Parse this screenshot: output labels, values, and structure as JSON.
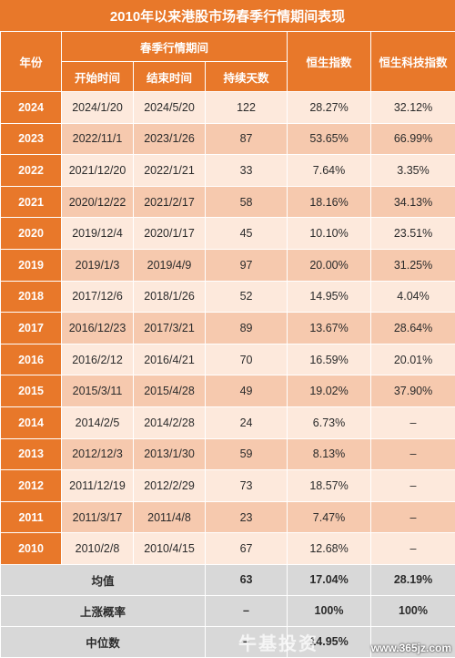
{
  "title": "2010年以来港股市场春季行情期间表现",
  "headers": {
    "year": "年份",
    "period_group": "春季行情期间",
    "start": "开始时间",
    "end": "结束时间",
    "days": "持续天数",
    "hsi": "恒生指数",
    "hstech": "恒生科技指数"
  },
  "rows": [
    {
      "year": "2024",
      "start": "2024/1/20",
      "end": "2024/5/20",
      "days": "122",
      "hsi": "28.27%",
      "hstech": "32.12%"
    },
    {
      "year": "2023",
      "start": "2022/11/1",
      "end": "2023/1/26",
      "days": "87",
      "hsi": "53.65%",
      "hstech": "66.99%"
    },
    {
      "year": "2022",
      "start": "2021/12/20",
      "end": "2022/1/21",
      "days": "33",
      "hsi": "7.64%",
      "hstech": "3.35%"
    },
    {
      "year": "2021",
      "start": "2020/12/22",
      "end": "2021/2/17",
      "days": "58",
      "hsi": "18.16%",
      "hstech": "34.13%"
    },
    {
      "year": "2020",
      "start": "2019/12/4",
      "end": "2020/1/17",
      "days": "45",
      "hsi": "10.10%",
      "hstech": "23.51%"
    },
    {
      "year": "2019",
      "start": "2019/1/3",
      "end": "2019/4/9",
      "days": "97",
      "hsi": "20.00%",
      "hstech": "31.25%"
    },
    {
      "year": "2018",
      "start": "2017/12/6",
      "end": "2018/1/26",
      "days": "52",
      "hsi": "14.95%",
      "hstech": "4.04%"
    },
    {
      "year": "2017",
      "start": "2016/12/23",
      "end": "2017/3/21",
      "days": "89",
      "hsi": "13.67%",
      "hstech": "28.64%"
    },
    {
      "year": "2016",
      "start": "2016/2/12",
      "end": "2016/4/21",
      "days": "70",
      "hsi": "16.59%",
      "hstech": "20.01%"
    },
    {
      "year": "2015",
      "start": "2015/3/11",
      "end": "2015/4/28",
      "days": "49",
      "hsi": "19.02%",
      "hstech": "37.90%"
    },
    {
      "year": "2014",
      "start": "2014/2/5",
      "end": "2014/2/28",
      "days": "24",
      "hsi": "6.73%",
      "hstech": "–"
    },
    {
      "year": "2013",
      "start": "2012/12/3",
      "end": "2013/1/30",
      "days": "59",
      "hsi": "8.13%",
      "hstech": "–"
    },
    {
      "year": "2012",
      "start": "2011/12/19",
      "end": "2012/2/29",
      "days": "73",
      "hsi": "18.57%",
      "hstech": "–"
    },
    {
      "year": "2011",
      "start": "2011/3/17",
      "end": "2011/4/8",
      "days": "23",
      "hsi": "7.47%",
      "hstech": "–"
    },
    {
      "year": "2010",
      "start": "2010/2/8",
      "end": "2010/4/15",
      "days": "67",
      "hsi": "12.68%",
      "hstech": "–"
    }
  ],
  "summary": [
    {
      "label": "均值",
      "days": "63",
      "hsi": "17.04%",
      "hstech": "28.19%"
    },
    {
      "label": "上涨概率",
      "days": "–",
      "hsi": "100%",
      "hstech": "100%"
    },
    {
      "label": "中位数",
      "days": "–",
      "hsi": "14.95%",
      "hstech": ""
    }
  ],
  "watermark": {
    "cn": "牛基投资",
    "url": "www.365jz.com"
  }
}
